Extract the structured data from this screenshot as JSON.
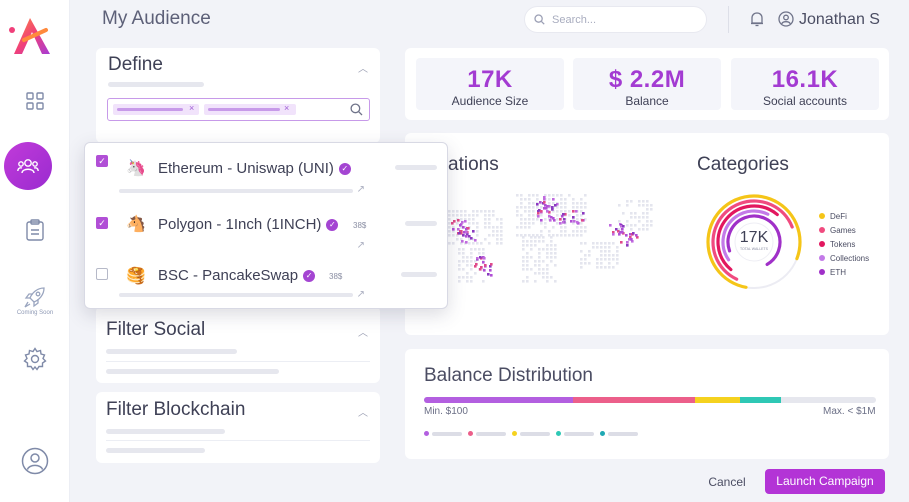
{
  "header": {
    "title": "My Audience",
    "search_placeholder": "Search...",
    "user_name": "Jonathan S"
  },
  "sidebar": {
    "coming_soon_label": "Coming Soon"
  },
  "define": {
    "title": "Define"
  },
  "dropdown": {
    "items": [
      {
        "label": "Ethereum - Uniswap (UNI)",
        "checked": true,
        "amount": ""
      },
      {
        "label": "Polygon - 1Inch (1INCH)",
        "checked": true,
        "amount": "38$"
      },
      {
        "label": "BSC - PancakeSwap",
        "checked": false,
        "amount": "38$"
      }
    ]
  },
  "filters": {
    "social_title": "Filter Social",
    "blockchain_title": "Filter Blockchain"
  },
  "stats": [
    {
      "value": "17K",
      "label": "Audience Size"
    },
    {
      "value": "$ 2.2M",
      "label": "Balance"
    },
    {
      "value": "16.1K",
      "label": "Social accounts"
    }
  ],
  "locations": {
    "title_partial": "ations"
  },
  "categories": {
    "title": "Categories",
    "center_value": "17K",
    "center_label": "TOTAL WALLETS",
    "items": [
      {
        "label": "DeFi",
        "color": "#f5c518"
      },
      {
        "label": "Games",
        "color": "#f04b7f"
      },
      {
        "label": "Tokens",
        "color": "#e2175f"
      },
      {
        "label": "Collections",
        "color": "#c37ae8"
      },
      {
        "label": "ETH",
        "color": "#a030c8"
      }
    ]
  },
  "balance_distribution": {
    "title": "Balance Distribution",
    "min_label": "Min. $100",
    "max_label": "Max. < $1M",
    "segments": [
      {
        "color": "#b35fe0",
        "fraction": 0.33
      },
      {
        "color": "#ec5f8a",
        "fraction": 0.27
      },
      {
        "color": "#f5d21f",
        "fraction": 0.1
      },
      {
        "color": "#2ec8b5",
        "fraction": 0.09
      }
    ],
    "legend_colors": [
      "#b35fe0",
      "#ec5f8a",
      "#f5d21f",
      "#2ec8b5",
      "#1fa9b4"
    ]
  },
  "actions": {
    "cancel": "Cancel",
    "launch": "Launch Campaign"
  }
}
